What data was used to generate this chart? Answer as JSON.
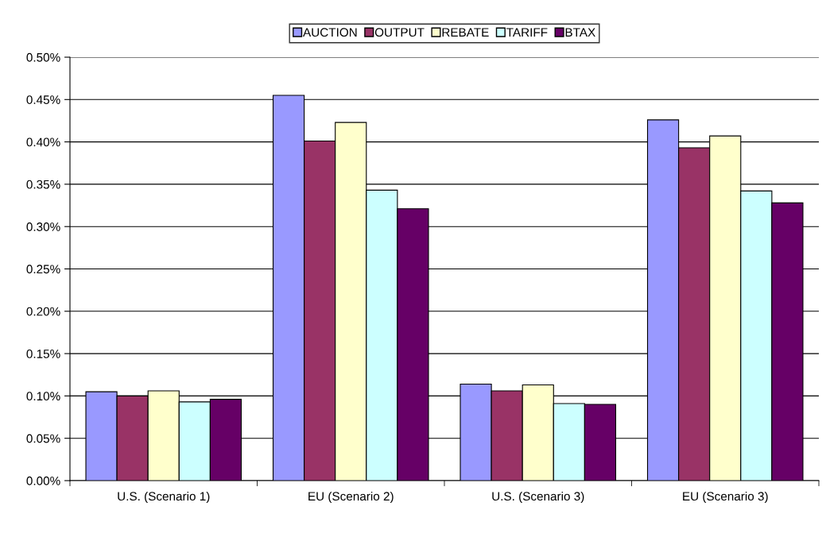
{
  "chart_data": {
    "type": "bar",
    "categories": [
      "U.S. (Scenario 1)",
      "EU (Scenario 2)",
      "U.S. (Scenario 3)",
      "EU (Scenario 3)"
    ],
    "series": [
      {
        "name": "AUCTION",
        "color": "#9999ff",
        "values": [
          0.105,
          0.455,
          0.114,
          0.426
        ]
      },
      {
        "name": "OUTPUT",
        "color": "#993366",
        "values": [
          0.1,
          0.401,
          0.106,
          0.393
        ]
      },
      {
        "name": "REBATE",
        "color": "#ffffcc",
        "values": [
          0.106,
          0.423,
          0.113,
          0.407
        ]
      },
      {
        "name": "TARIFF",
        "color": "#ccffff",
        "values": [
          0.093,
          0.343,
          0.091,
          0.342
        ]
      },
      {
        "name": "BTAX",
        "color": "#660066",
        "values": [
          0.096,
          0.321,
          0.09,
          0.328
        ]
      }
    ],
    "ylim": [
      0,
      0.5
    ],
    "yticks": [
      {
        "value": 0,
        "label": "0.00%"
      },
      {
        "value": 0.05,
        "label": "0.05%"
      },
      {
        "value": 0.1,
        "label": "0.10%"
      },
      {
        "value": 0.15,
        "label": "0.15%"
      },
      {
        "value": 0.2,
        "label": "0.20%"
      },
      {
        "value": 0.25,
        "label": "0.25%"
      },
      {
        "value": 0.3,
        "label": "0.30%"
      },
      {
        "value": 0.35,
        "label": "0.35%"
      },
      {
        "value": 0.4,
        "label": "0.40%"
      },
      {
        "value": 0.45,
        "label": "0.45%"
      },
      {
        "value": 0.5,
        "label": "0.50%"
      }
    ],
    "grid": "y",
    "legend": "top"
  }
}
